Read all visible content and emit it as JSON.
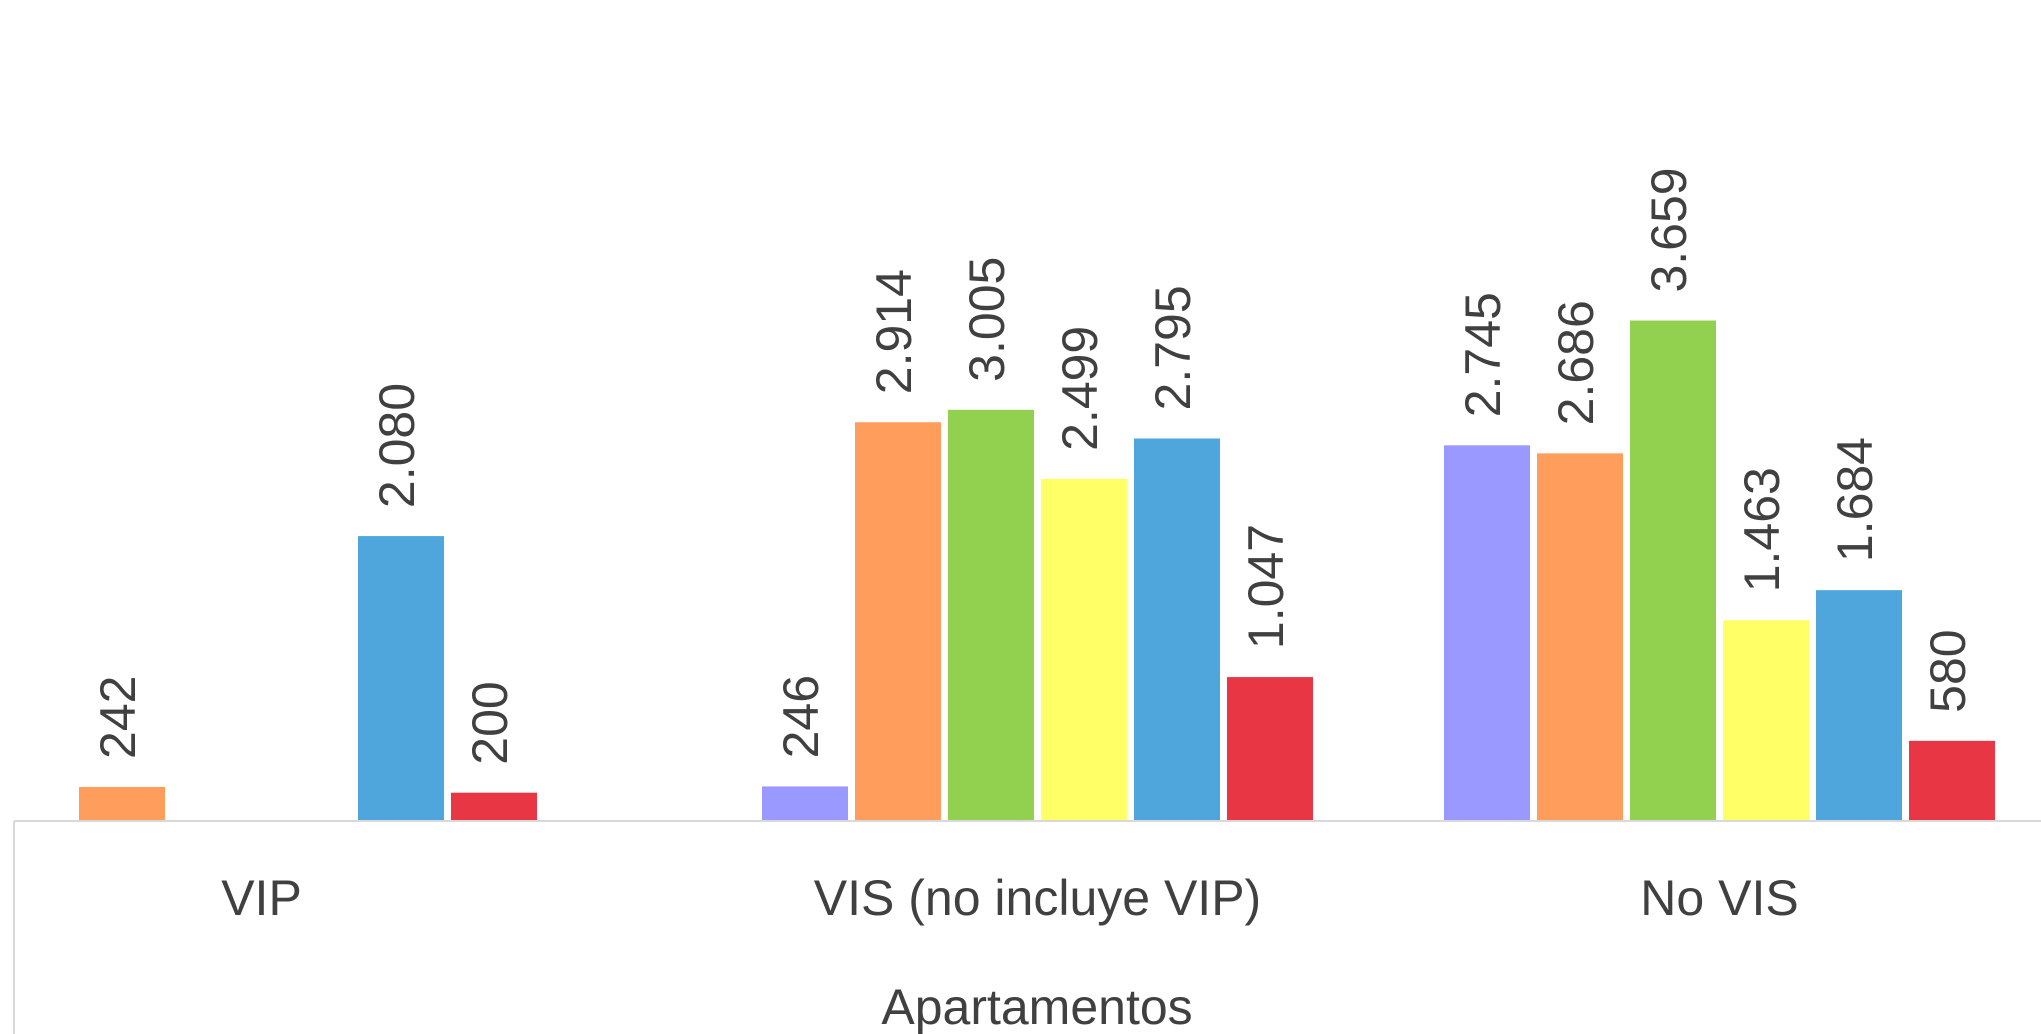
{
  "chart_data": {
    "type": "bar",
    "group_label": "Apartamentos",
    "categories": [
      "VIP",
      "VIS (no incluye VIP)",
      "No VIS"
    ],
    "series": [
      {
        "color": "#9999ff",
        "values": [
          null,
          246,
          2745
        ],
        "labels": [
          "",
          "246",
          "2.745"
        ]
      },
      {
        "color": "#ff9e5c",
        "values": [
          242,
          2914,
          2686
        ],
        "labels": [
          "242",
          "2.914",
          "2.686"
        ]
      },
      {
        "color": "#92d14f",
        "values": [
          null,
          3005,
          3659
        ],
        "labels": [
          "",
          "3.005",
          "3.659"
        ]
      },
      {
        "color": "#ffff66",
        "values": [
          null,
          2499,
          1463
        ],
        "labels": [
          "",
          "2.499",
          "1.463"
        ]
      },
      {
        "color": "#4fa6dc",
        "values": [
          2080,
          2795,
          1684
        ],
        "labels": [
          "2.080",
          "2.795",
          "1.684"
        ]
      },
      {
        "color": "#e93644",
        "values": [
          200,
          1047,
          580
        ],
        "labels": [
          "200",
          "1.047",
          "580"
        ]
      }
    ],
    "ylim": [
      0,
      4000
    ],
    "legend": "none",
    "grid": false,
    "axis_line_color": "#d9d9d9"
  }
}
